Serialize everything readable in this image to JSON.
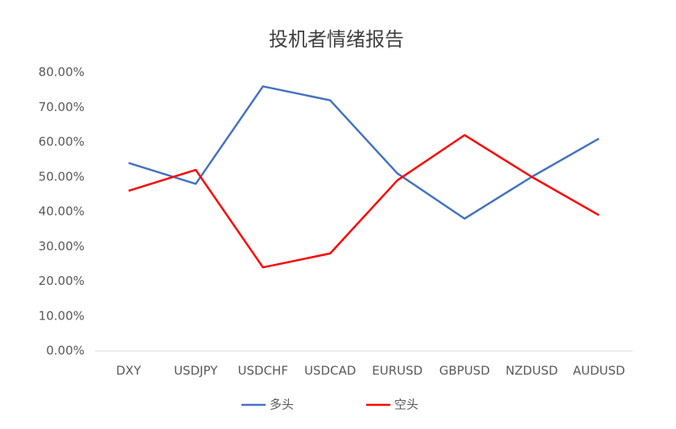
{
  "chart_data": {
    "type": "line",
    "title": "投机者情绪报告",
    "categories": [
      "DXY",
      "USDJPY",
      "USDCHF",
      "USDCAD",
      "EURUSD",
      "GBPUSD",
      "NZDUSD",
      "AUDUSD"
    ],
    "series": [
      {
        "name": "多头",
        "color": "#4472c4",
        "values": [
          54,
          48,
          76,
          72,
          51,
          38,
          50,
          61
        ]
      },
      {
        "name": "空头",
        "color": "#ff0000",
        "values": [
          46,
          52,
          24,
          28,
          49,
          62,
          50,
          39
        ]
      }
    ],
    "ylim": [
      0,
      80
    ],
    "yticks": [
      {
        "value": 0,
        "label": "0.00%"
      },
      {
        "value": 10,
        "label": "10.00%"
      },
      {
        "value": 20,
        "label": "20.00%"
      },
      {
        "value": 30,
        "label": "30.00%"
      },
      {
        "value": 40,
        "label": "40.00%"
      },
      {
        "value": 50,
        "label": "50.00%"
      },
      {
        "value": 60,
        "label": "60.00%"
      },
      {
        "value": 70,
        "label": "70.00%"
      },
      {
        "value": 80,
        "label": "80.00%"
      }
    ],
    "grid": false,
    "legend": "bottom"
  }
}
